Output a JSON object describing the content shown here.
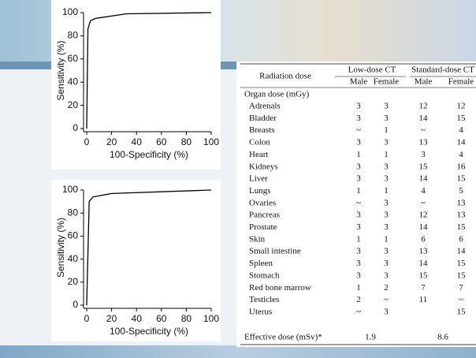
{
  "chart_data": [
    {
      "type": "line",
      "x_label": "100-Specificity (%)",
      "y_label": "Sensitivity (%)",
      "x": [
        0,
        1,
        3,
        7,
        32,
        100
      ],
      "values": [
        0,
        86,
        93,
        95,
        99,
        100
      ],
      "color": "#000000",
      "xlim": [
        0,
        100
      ],
      "ylim": [
        0,
        100
      ],
      "xticks": [
        0,
        20,
        40,
        60,
        80,
        100
      ],
      "yticks": [
        0,
        20,
        40,
        60,
        80,
        100
      ]
    },
    {
      "type": "line",
      "x_label": "100-Specificity (%)",
      "y_label": "Sensitivity (%)",
      "x": [
        0,
        2,
        5,
        20,
        100
      ],
      "values": [
        0,
        90,
        94,
        97,
        100
      ],
      "color": "#000000",
      "xlim": [
        0,
        100
      ],
      "ylim": [
        0,
        100
      ],
      "xticks": [
        0,
        20,
        40,
        60,
        80,
        100
      ],
      "yticks": [
        0,
        20,
        40,
        60,
        80,
        100
      ]
    }
  ],
  "table": {
    "row_header": "Radiation dose",
    "groups": [
      "Low-dose CT",
      "Standard-dose CT"
    ],
    "subheaders": [
      "Male",
      "Female",
      "Male",
      "Female"
    ],
    "section": "Organ dose (mGy)",
    "rows": [
      [
        "Adrenals",
        "3",
        "3",
        "12",
        "12"
      ],
      [
        "Bladder",
        "3",
        "3",
        "14",
        "15"
      ],
      [
        "Breasts",
        "~",
        "1",
        "~",
        "4"
      ],
      [
        "Colon",
        "3",
        "3",
        "13",
        "14"
      ],
      [
        "Heart",
        "1",
        "1",
        "3",
        "4"
      ],
      [
        "Kidneys",
        "3",
        "3",
        "15",
        "16"
      ],
      [
        "Liver",
        "3",
        "3",
        "14",
        "15"
      ],
      [
        "Lungs",
        "1",
        "1",
        "4",
        "5"
      ],
      [
        "Ovaries",
        "~",
        "3",
        "~",
        "13"
      ],
      [
        "Pancreas",
        "3",
        "3",
        "12",
        "13"
      ],
      [
        "Prostate",
        "3",
        "3",
        "14",
        "15"
      ],
      [
        "Skin",
        "1",
        "1",
        "6",
        "6"
      ],
      [
        "Small intestine",
        "3",
        "3",
        "13",
        "14"
      ],
      [
        "Spleen",
        "3",
        "3",
        "14",
        "15"
      ],
      [
        "Stomach",
        "3",
        "3",
        "15",
        "15"
      ],
      [
        "Red bone marrow",
        "1",
        "2",
        "7",
        "7"
      ],
      [
        "Testicles",
        "2",
        "~",
        "11",
        "~"
      ],
      [
        "Uterus",
        "~",
        "3",
        null,
        "15"
      ]
    ],
    "effective": {
      "label": "Effective dose (mSv)*",
      "values": [
        "1.9",
        "8.6"
      ]
    }
  }
}
